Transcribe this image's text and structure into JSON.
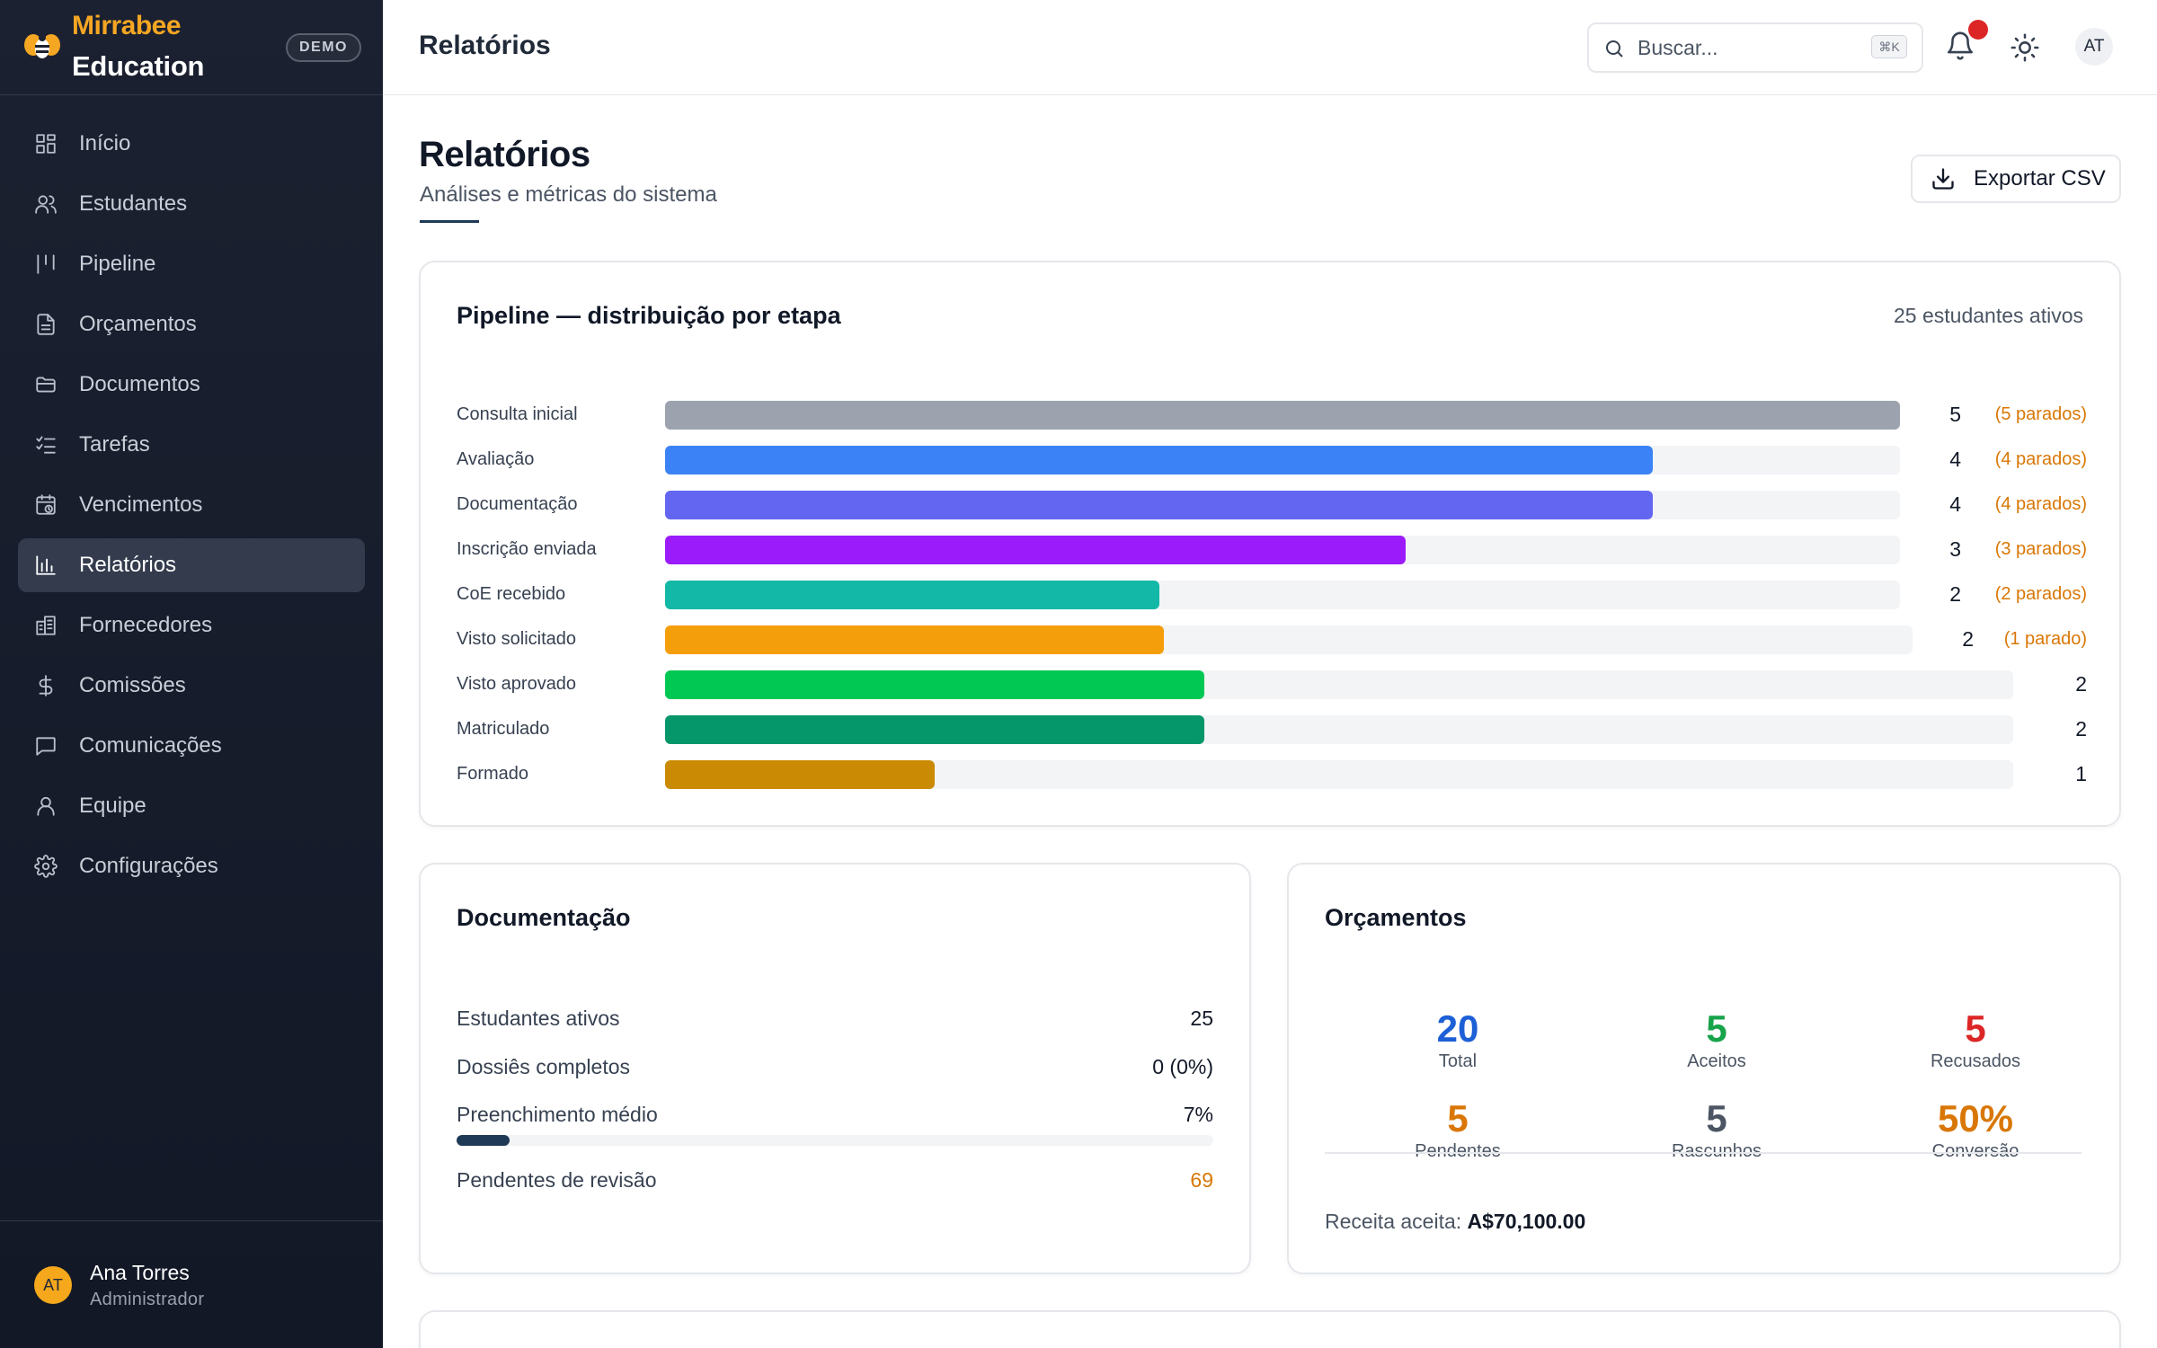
{
  "brand": {
    "name": "Mirrabee",
    "sub": "Education",
    "badge": "DEMO"
  },
  "nav": [
    {
      "label": "Início",
      "icon": "grid-icon",
      "key": "inicio"
    },
    {
      "label": "Estudantes",
      "icon": "users-icon",
      "key": "estudantes"
    },
    {
      "label": "Pipeline",
      "icon": "pipeline-icon",
      "key": "pipeline"
    },
    {
      "label": "Orçamentos",
      "icon": "file-text-icon",
      "key": "orcamentos"
    },
    {
      "label": "Documentos",
      "icon": "folder-icon",
      "key": "documentos"
    },
    {
      "label": "Tarefas",
      "icon": "checklist-icon",
      "key": "tarefas"
    },
    {
      "label": "Vencimentos",
      "icon": "calendar-clock-icon",
      "key": "vencimentos"
    },
    {
      "label": "Relatórios",
      "icon": "bar-chart-icon",
      "key": "relatorios",
      "active": true
    },
    {
      "label": "Fornecedores",
      "icon": "building-icon",
      "key": "fornecedores"
    },
    {
      "label": "Comissões",
      "icon": "dollar-icon",
      "key": "comissoes"
    },
    {
      "label": "Comunicações",
      "icon": "message-icon",
      "key": "comunicacoes"
    },
    {
      "label": "Equipe",
      "icon": "user-icon",
      "key": "equipe"
    },
    {
      "label": "Configurações",
      "icon": "gear-icon",
      "key": "configuracoes"
    }
  ],
  "user": {
    "initials": "AT",
    "name": "Ana Torres",
    "role": "Administrador"
  },
  "header": {
    "title": "Relatórios",
    "search_placeholder": "Buscar...",
    "shortcut": "⌘K",
    "avatar": "AT"
  },
  "page": {
    "title": "Relatórios",
    "subtitle": "Análises e métricas do sistema",
    "export_label": "Exportar CSV"
  },
  "pipeline": {
    "title": "Pipeline — distribuição por etapa",
    "meta": "25 estudantes ativos"
  },
  "chart_data": {
    "type": "bar",
    "orientation": "horizontal",
    "categories": [
      "Consulta inicial",
      "Avaliação",
      "Documentação",
      "Inscrição enviada",
      "CoE recebido",
      "Visto solicitado",
      "Visto aprovado",
      "Matriculado",
      "Formado"
    ],
    "values": [
      5,
      4,
      4,
      3,
      2,
      2,
      2,
      2,
      1
    ],
    "stalled_labels": [
      "(5 parados)",
      "(4 parados)",
      "(4 parados)",
      "(3 parados)",
      "(2 parados)",
      "(1 parado)",
      "",
      "",
      ""
    ],
    "colors": [
      "#9ca3af",
      "#3b82f6",
      "#6366f1",
      "#9b1bfa",
      "#14b8a6",
      "#f59e0b",
      "#00c853",
      "#059669",
      "#ca8a04"
    ],
    "xlim": [
      0,
      5
    ]
  },
  "documentation": {
    "title": "Documentação",
    "rows": [
      {
        "label": "Estudantes ativos",
        "value": "25"
      },
      {
        "label": "Dossiês completos",
        "value": "0 (0%)"
      },
      {
        "label": "Preenchimento médio",
        "value": "7%"
      },
      {
        "label": "Pendentes de revisão",
        "value": "69"
      }
    ],
    "avg_fill_fraction": 0.07
  },
  "quotes": {
    "title": "Orçamentos",
    "stats": [
      {
        "value": "20",
        "label": "Total",
        "color": "#1d5fd6"
      },
      {
        "value": "5",
        "label": "Aceitos",
        "color": "#16a34a"
      },
      {
        "value": "5",
        "label": "Recusados",
        "color": "#dc2626"
      },
      {
        "value": "5",
        "label": "Pendentes",
        "color": "#d97706"
      },
      {
        "value": "5",
        "label": "Rascunhos",
        "color": "#4b5563"
      },
      {
        "value": "50%",
        "label": "Conversão",
        "color": "#d97706"
      }
    ],
    "revenue_label": "Receita aceita:",
    "revenue_value": "A$70,100.00"
  }
}
